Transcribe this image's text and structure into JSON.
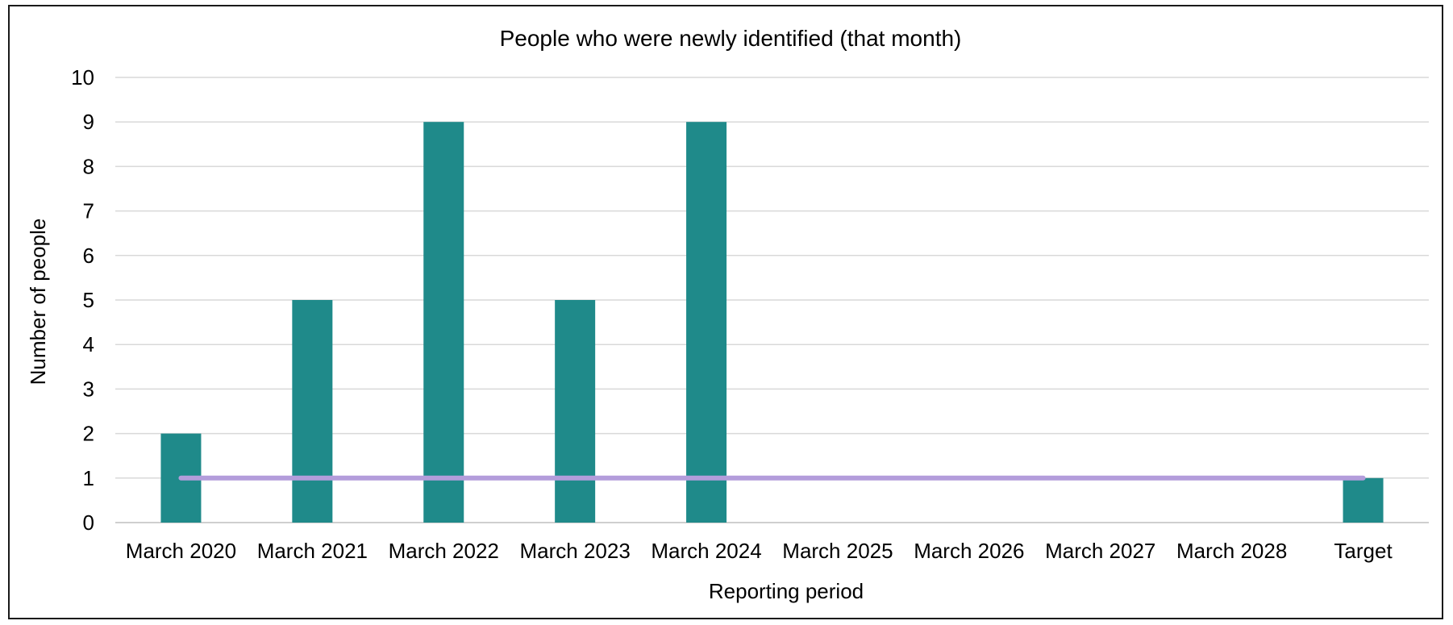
{
  "chart_data": {
    "type": "bar",
    "title": "People who were newly identified (that month)",
    "xlabel": "Reporting period",
    "ylabel": "Number of people",
    "categories": [
      "March 2020",
      "March 2021",
      "March 2022",
      "March 2023",
      "March 2024",
      "March 2025",
      "March 2026",
      "March 2027",
      "March 2028",
      "Target"
    ],
    "series": [
      {
        "values": [
          2,
          5,
          9,
          5,
          9,
          null,
          null,
          null,
          null,
          1
        ],
        "color": "#1f8a8a",
        "kind": "bar"
      },
      {
        "values": [
          1,
          1,
          1,
          1,
          1,
          1,
          1,
          1,
          1,
          1
        ],
        "color": "#b39ddb",
        "kind": "line"
      }
    ],
    "ylim": [
      0,
      10
    ],
    "yticks": [
      0,
      1,
      2,
      3,
      4,
      5,
      6,
      7,
      8,
      9,
      10
    ],
    "grid": true,
    "legend": "none"
  }
}
